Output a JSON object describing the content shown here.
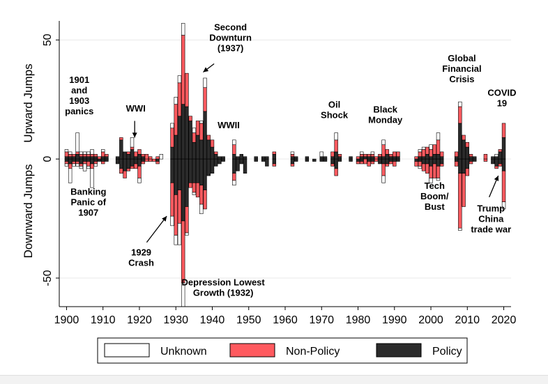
{
  "colors": {
    "policy": "#2b2b2b",
    "non_policy": "#ff5a5f",
    "unknown": "#ffffff",
    "outline": "#000000",
    "grid": "#eaeaea"
  },
  "chart_data": {
    "type": "bar",
    "stacked": true,
    "diverging": true,
    "title": "",
    "ylabel_top": "Upward Jumps",
    "ylabel_bottom": "Downward Jumps",
    "xlim": [
      1898,
      2022
    ],
    "ylim": [
      -62,
      58
    ],
    "x_ticks": [
      1900,
      1910,
      1920,
      1930,
      1940,
      1950,
      1960,
      1970,
      1980,
      1990,
      2000,
      2010,
      2020
    ],
    "y_ticks": [
      -50,
      0,
      50
    ],
    "grid": true,
    "legend_position": "bottom",
    "legend": [
      {
        "key": "unknown",
        "label": "Unknown"
      },
      {
        "key": "non_policy",
        "label": "Non-Policy"
      },
      {
        "key": "policy",
        "label": "Policy"
      }
    ],
    "stack_order_from_zero": [
      "policy",
      "non_policy",
      "unknown"
    ],
    "years": [
      {
        "year": 1900,
        "up": [
          1,
          2,
          1
        ],
        "down": [
          1,
          1,
          1
        ]
      },
      {
        "year": 1901,
        "up": [
          1,
          1,
          1
        ],
        "down": [
          2,
          2,
          6
        ]
      },
      {
        "year": 1902,
        "up": [
          1,
          1,
          0
        ],
        "down": [
          1,
          1,
          1
        ]
      },
      {
        "year": 1903,
        "up": [
          2,
          1,
          8
        ],
        "down": [
          1,
          1,
          1
        ]
      },
      {
        "year": 1904,
        "up": [
          1,
          1,
          1
        ],
        "down": [
          2,
          1,
          1
        ]
      },
      {
        "year": 1905,
        "up": [
          1,
          1,
          1
        ],
        "down": [
          1,
          1,
          3
        ]
      },
      {
        "year": 1906,
        "up": [
          1,
          1,
          1
        ],
        "down": [
          1,
          2,
          1
        ]
      },
      {
        "year": 1907,
        "up": [
          1,
          1,
          2
        ],
        "down": [
          2,
          2,
          8
        ]
      },
      {
        "year": 1908,
        "up": [
          1,
          1,
          0
        ],
        "down": [
          1,
          1,
          1
        ]
      },
      {
        "year": 1909,
        "up": [
          0,
          1,
          0
        ],
        "down": [
          1,
          0,
          0
        ]
      },
      {
        "year": 1910,
        "up": [
          1,
          2,
          1
        ],
        "down": [
          1,
          1,
          0
        ]
      },
      {
        "year": 1911,
        "up": [
          1,
          1,
          0
        ],
        "down": [
          1,
          0,
          0
        ]
      },
      {
        "year": 1914,
        "up": [
          1,
          0,
          0
        ],
        "down": [
          2,
          0,
          0
        ]
      },
      {
        "year": 1915,
        "up": [
          8,
          1,
          0
        ],
        "down": [
          4,
          2,
          0
        ]
      },
      {
        "year": 1916,
        "up": [
          3,
          0,
          0
        ],
        "down": [
          5,
          3,
          0
        ]
      },
      {
        "year": 1917,
        "up": [
          2,
          1,
          0
        ],
        "down": [
          4,
          1,
          0
        ]
      },
      {
        "year": 1918,
        "up": [
          4,
          1,
          4
        ],
        "down": [
          3,
          1,
          0
        ]
      },
      {
        "year": 1919,
        "up": [
          1,
          2,
          0
        ],
        "down": [
          2,
          2,
          0
        ]
      },
      {
        "year": 1920,
        "up": [
          2,
          2,
          0
        ],
        "down": [
          3,
          5,
          2
        ]
      },
      {
        "year": 1921,
        "up": [
          1,
          1,
          0
        ],
        "down": [
          1,
          1,
          0
        ]
      },
      {
        "year": 1922,
        "up": [
          0,
          2,
          0
        ],
        "down": [
          0,
          1,
          0
        ]
      },
      {
        "year": 1923,
        "up": [
          0,
          1,
          0
        ],
        "down": [
          0,
          1,
          0
        ]
      },
      {
        "year": 1924,
        "up": [
          0,
          0,
          0
        ],
        "down": [
          0,
          1,
          0
        ]
      },
      {
        "year": 1925,
        "up": [
          0,
          1,
          0
        ],
        "down": [
          1,
          1,
          0
        ]
      },
      {
        "year": 1926,
        "up": [
          0,
          0,
          2
        ],
        "down": [
          0,
          0,
          0
        ]
      },
      {
        "year": 1929,
        "up": [
          5,
          8,
          2
        ],
        "down": [
          10,
          14,
          4
        ]
      },
      {
        "year": 1930,
        "up": [
          10,
          13,
          3
        ],
        "down": [
          15,
          17,
          4
        ]
      },
      {
        "year": 1931,
        "up": [
          18,
          14,
          3
        ],
        "down": [
          13,
          14,
          9
        ]
      },
      {
        "year": 1932,
        "up": [
          23,
          29,
          5
        ],
        "down": [
          26,
          26,
          10
        ]
      },
      {
        "year": 1933,
        "up": [
          22,
          14,
          0
        ],
        "down": [
          20,
          11,
          1
        ]
      },
      {
        "year": 1934,
        "up": [
          16,
          2,
          0
        ],
        "down": [
          10,
          2,
          0
        ]
      },
      {
        "year": 1935,
        "up": [
          7,
          4,
          2
        ],
        "down": [
          10,
          4,
          1
        ]
      },
      {
        "year": 1936,
        "up": [
          10,
          6,
          0
        ],
        "down": [
          10,
          6,
          0
        ]
      },
      {
        "year": 1937,
        "up": [
          8,
          7,
          1
        ],
        "down": [
          11,
          8,
          4
        ]
      },
      {
        "year": 1938,
        "up": [
          20,
          10,
          4
        ],
        "down": [
          13,
          8,
          0
        ]
      },
      {
        "year": 1939,
        "up": [
          8,
          2,
          0
        ],
        "down": [
          7,
          0,
          0
        ]
      },
      {
        "year": 1940,
        "up": [
          5,
          3,
          0
        ],
        "down": [
          6,
          0,
          0
        ]
      },
      {
        "year": 1941,
        "up": [
          2,
          1,
          0
        ],
        "down": [
          3,
          0,
          0
        ]
      },
      {
        "year": 1942,
        "up": [
          1,
          0,
          0
        ],
        "down": [
          2,
          0,
          0
        ]
      },
      {
        "year": 1943,
        "up": [
          1,
          0,
          0
        ],
        "down": [
          1,
          0,
          0
        ]
      },
      {
        "year": 1946,
        "up": [
          2,
          4,
          2
        ],
        "down": [
          6,
          3,
          2
        ]
      },
      {
        "year": 1947,
        "up": [
          1,
          0,
          0
        ],
        "down": [
          5,
          0,
          0
        ]
      },
      {
        "year": 1948,
        "up": [
          2,
          0,
          0
        ],
        "down": [
          2,
          0,
          0
        ]
      },
      {
        "year": 1949,
        "up": [
          1,
          0,
          0
        ],
        "down": [
          6,
          0,
          0
        ]
      },
      {
        "year": 1952,
        "up": [
          1,
          0,
          0
        ],
        "down": [
          1,
          0,
          0
        ]
      },
      {
        "year": 1954,
        "up": [
          1,
          0,
          0
        ],
        "down": [
          1,
          0,
          0
        ]
      },
      {
        "year": 1955,
        "up": [
          1,
          0,
          0
        ],
        "down": [
          3,
          0,
          0
        ]
      },
      {
        "year": 1957,
        "up": [
          2,
          1,
          0
        ],
        "down": [
          2,
          1,
          0
        ]
      },
      {
        "year": 1962,
        "up": [
          1,
          1,
          1
        ],
        "down": [
          2,
          1,
          0
        ]
      },
      {
        "year": 1963,
        "up": [
          1,
          0,
          0
        ],
        "down": [
          1,
          0,
          0
        ]
      },
      {
        "year": 1966,
        "up": [
          1,
          0,
          0
        ],
        "down": [
          1,
          0,
          0
        ]
      },
      {
        "year": 1968,
        "up": [
          0,
          0,
          0
        ],
        "down": [
          1,
          0,
          0
        ]
      },
      {
        "year": 1970,
        "up": [
          1,
          0,
          2
        ],
        "down": [
          1,
          0,
          0
        ]
      },
      {
        "year": 1971,
        "up": [
          1,
          0,
          0
        ],
        "down": [
          1,
          0,
          0
        ]
      },
      {
        "year": 1973,
        "up": [
          1,
          2,
          0
        ],
        "down": [
          2,
          1,
          0
        ]
      },
      {
        "year": 1974,
        "up": [
          3,
          5,
          3
        ],
        "down": [
          4,
          3,
          0
        ]
      },
      {
        "year": 1975,
        "up": [
          1,
          1,
          0
        ],
        "down": [
          1,
          0,
          0
        ]
      },
      {
        "year": 1978,
        "up": [
          1,
          0,
          0
        ],
        "down": [
          1,
          0,
          0
        ]
      },
      {
        "year": 1980,
        "up": [
          0,
          1,
          0
        ],
        "down": [
          1,
          1,
          0
        ]
      },
      {
        "year": 1981,
        "up": [
          1,
          1,
          1
        ],
        "down": [
          1,
          1,
          0
        ]
      },
      {
        "year": 1982,
        "up": [
          1,
          1,
          0
        ],
        "down": [
          0,
          2,
          0
        ]
      },
      {
        "year": 1983,
        "up": [
          1,
          1,
          0
        ],
        "down": [
          1,
          2,
          0
        ]
      },
      {
        "year": 1984,
        "up": [
          1,
          1,
          1
        ],
        "down": [
          1,
          1,
          0
        ]
      },
      {
        "year": 1985,
        "up": [
          0,
          1,
          0
        ],
        "down": [
          0,
          1,
          0
        ]
      },
      {
        "year": 1986,
        "up": [
          1,
          1,
          0
        ],
        "down": [
          2,
          0,
          0
        ]
      },
      {
        "year": 1987,
        "up": [
          1,
          5,
          2
        ],
        "down": [
          2,
          5,
          3
        ]
      },
      {
        "year": 1988,
        "up": [
          2,
          2,
          0
        ],
        "down": [
          2,
          1,
          0
        ]
      },
      {
        "year": 1989,
        "up": [
          1,
          1,
          0
        ],
        "down": [
          1,
          1,
          0
        ]
      },
      {
        "year": 1990,
        "up": [
          1,
          2,
          0
        ],
        "down": [
          1,
          2,
          0
        ]
      },
      {
        "year": 1991,
        "up": [
          1,
          2,
          0
        ],
        "down": [
          1,
          0,
          0
        ]
      },
      {
        "year": 1996,
        "up": [
          0,
          1,
          0
        ],
        "down": [
          1,
          2,
          0
        ]
      },
      {
        "year": 1997,
        "up": [
          1,
          2,
          1
        ],
        "down": [
          1,
          2,
          1
        ]
      },
      {
        "year": 1998,
        "up": [
          1,
          3,
          1
        ],
        "down": [
          2,
          3,
          0
        ]
      },
      {
        "year": 1999,
        "up": [
          2,
          3,
          0
        ],
        "down": [
          2,
          4,
          0
        ]
      },
      {
        "year": 2000,
        "up": [
          1,
          3,
          2
        ],
        "down": [
          3,
          5,
          2
        ]
      },
      {
        "year": 2001,
        "up": [
          2,
          4,
          0
        ],
        "down": [
          2,
          6,
          0
        ]
      },
      {
        "year": 2002,
        "up": [
          2,
          6,
          3
        ],
        "down": [
          3,
          5,
          1
        ]
      },
      {
        "year": 2003,
        "up": [
          1,
          2,
          0
        ],
        "down": [
          2,
          1,
          0
        ]
      },
      {
        "year": 2007,
        "up": [
          1,
          2,
          0
        ],
        "down": [
          1,
          2,
          0
        ]
      },
      {
        "year": 2008,
        "up": [
          15,
          7,
          2
        ],
        "down": [
          6,
          23,
          1
        ]
      },
      {
        "year": 2009,
        "up": [
          8,
          2,
          0
        ],
        "down": [
          6,
          14,
          0
        ]
      },
      {
        "year": 2010,
        "up": [
          5,
          2,
          0
        ],
        "down": [
          4,
          3,
          0
        ]
      },
      {
        "year": 2011,
        "up": [
          1,
          1,
          0
        ],
        "down": [
          1,
          1,
          0
        ]
      },
      {
        "year": 2012,
        "up": [
          1,
          0,
          0
        ],
        "down": [
          1,
          0,
          0
        ]
      },
      {
        "year": 2015,
        "up": [
          0,
          2,
          0
        ],
        "down": [
          0,
          1,
          0
        ]
      },
      {
        "year": 2017,
        "up": [
          1,
          0,
          0
        ],
        "down": [
          2,
          0,
          0
        ]
      },
      {
        "year": 2018,
        "up": [
          1,
          0,
          1
        ],
        "down": [
          3,
          1,
          0
        ]
      },
      {
        "year": 2019,
        "up": [
          3,
          1,
          0
        ],
        "down": [
          2,
          1,
          0
        ]
      },
      {
        "year": 2020,
        "up": [
          9,
          6,
          0
        ],
        "down": [
          5,
          13,
          3
        ]
      }
    ],
    "annotations": [
      {
        "id": "panics-1901-1903",
        "lines": [
          "1901",
          "and",
          "1903",
          "panics"
        ],
        "x": 1903.5,
        "y": 32
      },
      {
        "id": "wwi",
        "lines": [
          "WWI"
        ],
        "x": 1919,
        "y": 20
      },
      {
        "id": "banking-panic-1907",
        "lines": [
          "Banking",
          "Panic of",
          "1907"
        ],
        "x": 1906,
        "y": -15
      },
      {
        "id": "crash-1929",
        "lines": [
          "1929",
          "Crash"
        ],
        "x": 1920.5,
        "y": -40.5
      },
      {
        "id": "second-downturn-1937",
        "lines": [
          "Second",
          "Downturn",
          "(1937)"
        ],
        "x": 1945,
        "y": 54
      },
      {
        "id": "depression-lowest-growth-1932",
        "lines": [
          "Depression Lowest",
          "Growth (1932)"
        ],
        "x": 1943,
        "y": -53
      },
      {
        "id": "wwii",
        "lines": [
          "WWII"
        ],
        "x": 1944.5,
        "y": 13
      },
      {
        "id": "oil-shock",
        "lines": [
          "Oil",
          "Shock"
        ],
        "x": 1973.5,
        "y": 21.5
      },
      {
        "id": "black-monday",
        "lines": [
          "Black",
          "Monday"
        ],
        "x": 1987.5,
        "y": 19.5
      },
      {
        "id": "global-financial-crisis",
        "lines": [
          "Global",
          "Financial",
          "Crisis"
        ],
        "x": 2008.5,
        "y": 41
      },
      {
        "id": "covid-19",
        "lines": [
          "COVID",
          "19"
        ],
        "x": 2019.5,
        "y": 26.5
      },
      {
        "id": "tech-boom-bust",
        "lines": [
          "Tech",
          "Boom/",
          "Bust"
        ],
        "x": 2001,
        "y": -12.5
      },
      {
        "id": "trump-china-trade-war",
        "lines": [
          "Trump",
          "China",
          "trade war"
        ],
        "x": 2016.5,
        "y": -22
      }
    ],
    "arrows": [
      {
        "id": "wwi-arrow",
        "from": [
          1918.7,
          16
        ],
        "to": [
          1918.7,
          9
        ]
      },
      {
        "id": "crash-1929-arrow",
        "from": [
          1922,
          -35
        ],
        "to": [
          1927.5,
          -24
        ]
      },
      {
        "id": "second-downturn-arrow",
        "from": [
          1940.5,
          40
        ],
        "to": [
          1937.5,
          36.5
        ]
      },
      {
        "id": "trump-arrow",
        "from": [
          2016,
          -16
        ],
        "to": [
          2018.5,
          -7
        ]
      }
    ]
  }
}
